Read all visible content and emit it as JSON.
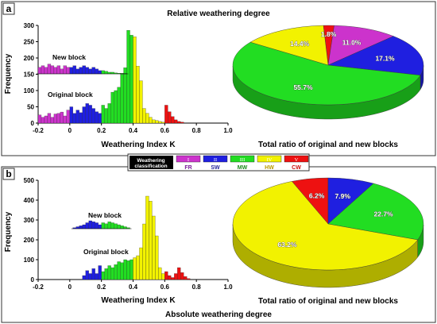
{
  "figure": {
    "panel_a_letter": "a",
    "panel_b_letter": "b",
    "panel_a_title": "Relative weathering degree",
    "panel_b_title": "Absolute weathering degree"
  },
  "legend": {
    "box_label_line1": "Weathering",
    "box_label_line2": "classification",
    "items": [
      {
        "roman": "I",
        "code": "FR",
        "color": "#cc33cc",
        "code_color": "#7a1f9a"
      },
      {
        "roman": "II",
        "code": "SW",
        "color": "#1f1fe0",
        "code_color": "#1f1f9a"
      },
      {
        "roman": "III",
        "code": "MW",
        "color": "#22dd22",
        "code_color": "#1a8a1a"
      },
      {
        "roman": "IV",
        "code": "HW",
        "color": "#f2f200",
        "code_color": "#b89a00"
      },
      {
        "roman": "V",
        "code": "CW",
        "color": "#ee1111",
        "code_color": "#cc1111"
      }
    ]
  },
  "chart_data": [
    {
      "type": "bar",
      "panel": "a",
      "xlabel": "Weathering Index K",
      "ylabel": "Frequency",
      "xlim": [
        -0.2,
        1.0
      ],
      "ylim": [
        0,
        300
      ],
      "xticks": [
        "-0.2",
        "0",
        "0.2",
        "0.4",
        "0.6",
        "0.8",
        "1.0"
      ],
      "yticks": [
        "0",
        "50",
        "100",
        "150",
        "200",
        "250",
        "300"
      ],
      "annotations": [
        "New block",
        "Original block"
      ],
      "bin_width": 0.02,
      "series": [
        {
          "name": "Original block",
          "bins": [
            {
              "x": -0.2,
              "y": 25,
              "c": "#cc33cc"
            },
            {
              "x": -0.18,
              "y": 18,
              "c": "#cc33cc"
            },
            {
              "x": -0.16,
              "y": 22,
              "c": "#cc33cc"
            },
            {
              "x": -0.14,
              "y": 30,
              "c": "#cc33cc"
            },
            {
              "x": -0.12,
              "y": 18,
              "c": "#cc33cc"
            },
            {
              "x": -0.1,
              "y": 28,
              "c": "#cc33cc"
            },
            {
              "x": -0.08,
              "y": 30,
              "c": "#cc33cc"
            },
            {
              "x": -0.06,
              "y": 34,
              "c": "#cc33cc"
            },
            {
              "x": -0.04,
              "y": 22,
              "c": "#cc33cc"
            },
            {
              "x": -0.02,
              "y": 40,
              "c": "#cc33cc"
            },
            {
              "x": 0.0,
              "y": 50,
              "c": "#1f1fe0"
            },
            {
              "x": 0.02,
              "y": 30,
              "c": "#1f1fe0"
            },
            {
              "x": 0.04,
              "y": 40,
              "c": "#1f1fe0"
            },
            {
              "x": 0.06,
              "y": 32,
              "c": "#1f1fe0"
            },
            {
              "x": 0.08,
              "y": 50,
              "c": "#1f1fe0"
            },
            {
              "x": 0.1,
              "y": 60,
              "c": "#1f1fe0"
            },
            {
              "x": 0.12,
              "y": 55,
              "c": "#1f1fe0"
            },
            {
              "x": 0.14,
              "y": 45,
              "c": "#1f1fe0"
            },
            {
              "x": 0.16,
              "y": 35,
              "c": "#1f1fe0"
            },
            {
              "x": 0.18,
              "y": 30,
              "c": "#1f1fe0"
            },
            {
              "x": 0.2,
              "y": 55,
              "c": "#22dd22"
            },
            {
              "x": 0.22,
              "y": 45,
              "c": "#22dd22"
            },
            {
              "x": 0.24,
              "y": 60,
              "c": "#22dd22"
            },
            {
              "x": 0.26,
              "y": 95,
              "c": "#22dd22"
            },
            {
              "x": 0.28,
              "y": 100,
              "c": "#22dd22"
            },
            {
              "x": 0.3,
              "y": 110,
              "c": "#22dd22"
            },
            {
              "x": 0.32,
              "y": 150,
              "c": "#22dd22"
            },
            {
              "x": 0.34,
              "y": 170,
              "c": "#22dd22"
            },
            {
              "x": 0.36,
              "y": 285,
              "c": "#22dd22"
            },
            {
              "x": 0.38,
              "y": 270,
              "c": "#22dd22"
            },
            {
              "x": 0.4,
              "y": 265,
              "c": "#f2f200"
            },
            {
              "x": 0.42,
              "y": 175,
              "c": "#f2f200"
            },
            {
              "x": 0.44,
              "y": 130,
              "c": "#f2f200"
            },
            {
              "x": 0.46,
              "y": 45,
              "c": "#f2f200"
            },
            {
              "x": 0.48,
              "y": 30,
              "c": "#f2f200"
            },
            {
              "x": 0.5,
              "y": 18,
              "c": "#f2f200"
            },
            {
              "x": 0.52,
              "y": 10,
              "c": "#f2f200"
            },
            {
              "x": 0.54,
              "y": 8,
              "c": "#f2f200"
            },
            {
              "x": 0.56,
              "y": 5,
              "c": "#f2f200"
            },
            {
              "x": 0.58,
              "y": 3,
              "c": "#f2f200"
            },
            {
              "x": 0.6,
              "y": 55,
              "c": "#ee1111"
            },
            {
              "x": 0.62,
              "y": 35,
              "c": "#ee1111"
            },
            {
              "x": 0.64,
              "y": 20,
              "c": "#ee1111"
            },
            {
              "x": 0.66,
              "y": 10,
              "c": "#ee1111"
            },
            {
              "x": 0.68,
              "y": 5,
              "c": "#ee1111"
            },
            {
              "x": 0.7,
              "y": 3,
              "c": "#ee1111"
            }
          ]
        },
        {
          "name": "New block",
          "bins": [
            {
              "x": -0.2,
              "y": 20,
              "c": "#cc33cc"
            },
            {
              "x": -0.18,
              "y": 25,
              "c": "#cc33cc"
            },
            {
              "x": -0.16,
              "y": 20,
              "c": "#cc33cc"
            },
            {
              "x": -0.14,
              "y": 30,
              "c": "#cc33cc"
            },
            {
              "x": -0.12,
              "y": 25,
              "c": "#cc33cc"
            },
            {
              "x": -0.1,
              "y": 20,
              "c": "#cc33cc"
            },
            {
              "x": -0.08,
              "y": 25,
              "c": "#cc33cc"
            },
            {
              "x": -0.06,
              "y": 15,
              "c": "#cc33cc"
            },
            {
              "x": -0.04,
              "y": 25,
              "c": "#cc33cc"
            },
            {
              "x": -0.02,
              "y": 20,
              "c": "#cc33cc"
            },
            {
              "x": 0.0,
              "y": 20,
              "c": "#1f1fe0"
            },
            {
              "x": 0.02,
              "y": 25,
              "c": "#1f1fe0"
            },
            {
              "x": 0.04,
              "y": 15,
              "c": "#1f1fe0"
            },
            {
              "x": 0.06,
              "y": 20,
              "c": "#1f1fe0"
            },
            {
              "x": 0.08,
              "y": 25,
              "c": "#1f1fe0"
            },
            {
              "x": 0.1,
              "y": 20,
              "c": "#1f1fe0"
            },
            {
              "x": 0.12,
              "y": 15,
              "c": "#1f1fe0"
            },
            {
              "x": 0.14,
              "y": 20,
              "c": "#1f1fe0"
            },
            {
              "x": 0.16,
              "y": 15,
              "c": "#1f1fe0"
            },
            {
              "x": 0.18,
              "y": 10,
              "c": "#1f1fe0"
            },
            {
              "x": 0.2,
              "y": 10,
              "c": "#22dd22"
            },
            {
              "x": 0.22,
              "y": 8,
              "c": "#22dd22"
            },
            {
              "x": 0.24,
              "y": 5,
              "c": "#22dd22"
            },
            {
              "x": 0.26,
              "y": 5,
              "c": "#22dd22"
            },
            {
              "x": 0.28,
              "y": 3,
              "c": "#22dd22"
            },
            {
              "x": 0.3,
              "y": 2,
              "c": "#22dd22"
            },
            {
              "x": 0.32,
              "y": 2,
              "c": "#22dd22"
            },
            {
              "x": 0.34,
              "y": 2,
              "c": "#22dd22"
            }
          ]
        }
      ]
    },
    {
      "type": "pie",
      "panel": "a",
      "xlabel": "Total ratio of original and new blocks",
      "slices": [
        {
          "label": "1.8%",
          "value": 1.8,
          "color": "#ee1111"
        },
        {
          "label": "11.0%",
          "value": 11.0,
          "color": "#cc33cc"
        },
        {
          "label": "17.1%",
          "value": 17.1,
          "color": "#1f1fe0"
        },
        {
          "label": "55.7%",
          "value": 55.7,
          "color": "#22dd22"
        },
        {
          "label": "14.4%",
          "value": 14.4,
          "color": "#f2f200"
        }
      ]
    },
    {
      "type": "bar",
      "panel": "b",
      "xlabel": "Weathering Index K",
      "ylabel": "Frequency",
      "xlim": [
        -0.2,
        1.0
      ],
      "ylim": [
        0,
        500
      ],
      "xticks": [
        "-0.2",
        "0",
        "0.2",
        "0.4",
        "0.6",
        "0.8",
        "1.0"
      ],
      "yticks": [
        "0",
        "100",
        "200",
        "300",
        "400",
        "500"
      ],
      "annotations": [
        "New block",
        "Original block"
      ],
      "bin_width": 0.02,
      "series": [
        {
          "name": "Original block",
          "bins": [
            {
              "x": 0.08,
              "y": 20,
              "c": "#1f1fe0"
            },
            {
              "x": 0.1,
              "y": 45,
              "c": "#1f1fe0"
            },
            {
              "x": 0.12,
              "y": 30,
              "c": "#1f1fe0"
            },
            {
              "x": 0.14,
              "y": 55,
              "c": "#1f1fe0"
            },
            {
              "x": 0.16,
              "y": 30,
              "c": "#1f1fe0"
            },
            {
              "x": 0.18,
              "y": 70,
              "c": "#1f1fe0"
            },
            {
              "x": 0.2,
              "y": 40,
              "c": "#22dd22"
            },
            {
              "x": 0.22,
              "y": 55,
              "c": "#22dd22"
            },
            {
              "x": 0.24,
              "y": 70,
              "c": "#22dd22"
            },
            {
              "x": 0.26,
              "y": 60,
              "c": "#22dd22"
            },
            {
              "x": 0.28,
              "y": 75,
              "c": "#22dd22"
            },
            {
              "x": 0.3,
              "y": 90,
              "c": "#22dd22"
            },
            {
              "x": 0.32,
              "y": 85,
              "c": "#22dd22"
            },
            {
              "x": 0.34,
              "y": 100,
              "c": "#22dd22"
            },
            {
              "x": 0.36,
              "y": 95,
              "c": "#22dd22"
            },
            {
              "x": 0.38,
              "y": 100,
              "c": "#22dd22"
            },
            {
              "x": 0.4,
              "y": 110,
              "c": "#f2f200"
            },
            {
              "x": 0.42,
              "y": 120,
              "c": "#f2f200"
            },
            {
              "x": 0.44,
              "y": 160,
              "c": "#f2f200"
            },
            {
              "x": 0.46,
              "y": 280,
              "c": "#f2f200"
            },
            {
              "x": 0.48,
              "y": 420,
              "c": "#f2f200"
            },
            {
              "x": 0.5,
              "y": 395,
              "c": "#f2f200"
            },
            {
              "x": 0.52,
              "y": 320,
              "c": "#f2f200"
            },
            {
              "x": 0.54,
              "y": 220,
              "c": "#f2f200"
            },
            {
              "x": 0.56,
              "y": 60,
              "c": "#f2f200"
            },
            {
              "x": 0.58,
              "y": 30,
              "c": "#f2f200"
            },
            {
              "x": 0.6,
              "y": 40,
              "c": "#ee1111"
            },
            {
              "x": 0.62,
              "y": 20,
              "c": "#ee1111"
            },
            {
              "x": 0.64,
              "y": 10,
              "c": "#ee1111"
            },
            {
              "x": 0.66,
              "y": 30,
              "c": "#ee1111"
            },
            {
              "x": 0.68,
              "y": 60,
              "c": "#ee1111"
            },
            {
              "x": 0.7,
              "y": 35,
              "c": "#ee1111"
            },
            {
              "x": 0.72,
              "y": 15,
              "c": "#ee1111"
            },
            {
              "x": 0.74,
              "y": 5,
              "c": "#ee1111"
            }
          ]
        },
        {
          "name": "New block",
          "bins": [
            {
              "x": 0.02,
              "y": 5,
              "c": "#1f1fe0"
            },
            {
              "x": 0.04,
              "y": 10,
              "c": "#1f1fe0"
            },
            {
              "x": 0.06,
              "y": 15,
              "c": "#1f1fe0"
            },
            {
              "x": 0.08,
              "y": 20,
              "c": "#1f1fe0"
            },
            {
              "x": 0.1,
              "y": 30,
              "c": "#1f1fe0"
            },
            {
              "x": 0.12,
              "y": 40,
              "c": "#1f1fe0"
            },
            {
              "x": 0.14,
              "y": 35,
              "c": "#1f1fe0"
            },
            {
              "x": 0.16,
              "y": 30,
              "c": "#1f1fe0"
            },
            {
              "x": 0.18,
              "y": 20,
              "c": "#1f1fe0"
            },
            {
              "x": 0.2,
              "y": 30,
              "c": "#22dd22"
            },
            {
              "x": 0.22,
              "y": 25,
              "c": "#22dd22"
            },
            {
              "x": 0.24,
              "y": 35,
              "c": "#22dd22"
            },
            {
              "x": 0.26,
              "y": 30,
              "c": "#22dd22"
            },
            {
              "x": 0.28,
              "y": 25,
              "c": "#22dd22"
            },
            {
              "x": 0.3,
              "y": 20,
              "c": "#22dd22"
            },
            {
              "x": 0.32,
              "y": 15,
              "c": "#22dd22"
            },
            {
              "x": 0.34,
              "y": 10,
              "c": "#22dd22"
            },
            {
              "x": 0.36,
              "y": 5,
              "c": "#22dd22"
            }
          ]
        }
      ]
    },
    {
      "type": "pie",
      "panel": "b",
      "xlabel": "Total ratio of original and new blocks",
      "slices": [
        {
          "label": "6.2%",
          "value": 6.2,
          "color": "#ee1111"
        },
        {
          "label": "7.9%",
          "value": 7.9,
          "color": "#1f1fe0"
        },
        {
          "label": "22.7%",
          "value": 22.7,
          "color": "#22dd22"
        },
        {
          "label": "63.2%",
          "value": 63.2,
          "color": "#f2f200"
        }
      ]
    }
  ]
}
